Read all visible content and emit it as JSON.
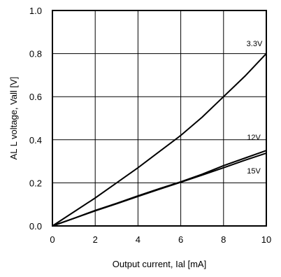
{
  "chart_data": {
    "type": "line",
    "title": "",
    "xlabel": "Output current, Ial [mA]",
    "ylabel": "AL L voltage, Vall [V]",
    "xlim": [
      0,
      10
    ],
    "ylim": [
      0,
      1.0
    ],
    "xticks": [
      0,
      2,
      4,
      6,
      8,
      10
    ],
    "yticks": [
      0.0,
      0.2,
      0.4,
      0.6,
      0.8,
      1.0
    ],
    "xtick_labels": [
      "0",
      "2",
      "4",
      "6",
      "8",
      "10"
    ],
    "ytick_labels": [
      "0.0",
      "0.2",
      "0.4",
      "0.6",
      "0.8",
      "1.0"
    ],
    "grid": true,
    "series": [
      {
        "name": "3.3V",
        "x": [
          0,
          1,
          2,
          3,
          4,
          5,
          6,
          7,
          8,
          9,
          10
        ],
        "y": [
          0,
          0.065,
          0.13,
          0.2,
          0.27,
          0.345,
          0.42,
          0.505,
          0.6,
          0.695,
          0.8
        ]
      },
      {
        "name": "12V",
        "x": [
          0,
          1,
          2,
          3,
          4,
          5,
          6,
          7,
          8,
          9,
          10
        ],
        "y": [
          0,
          0.035,
          0.072,
          0.105,
          0.14,
          0.173,
          0.205,
          0.24,
          0.28,
          0.315,
          0.35
        ]
      },
      {
        "name": "15V",
        "x": [
          0,
          1,
          2,
          3,
          4,
          5,
          6,
          7,
          8,
          9,
          10
        ],
        "y": [
          0,
          0.035,
          0.07,
          0.103,
          0.137,
          0.17,
          0.203,
          0.236,
          0.27,
          0.305,
          0.338
        ]
      }
    ]
  }
}
